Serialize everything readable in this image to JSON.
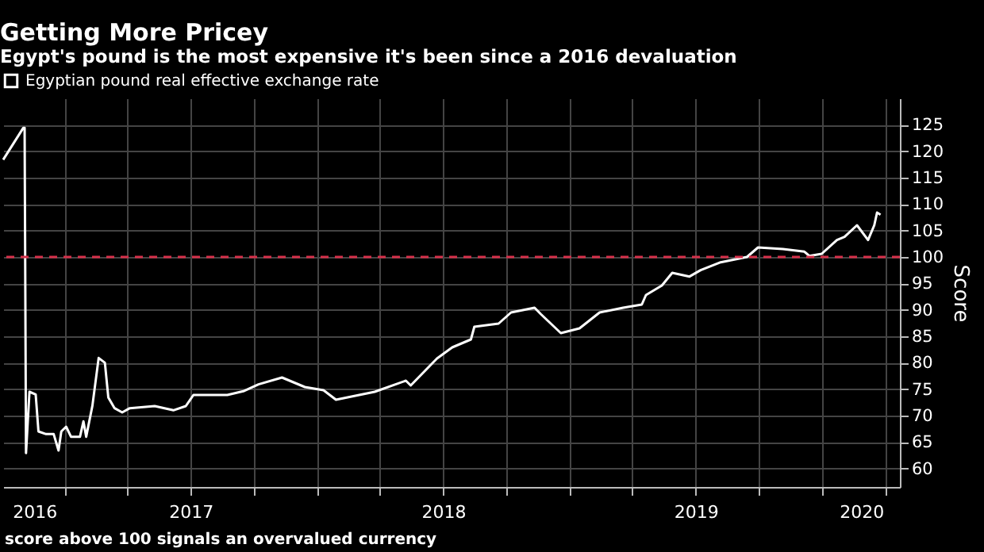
{
  "chart_data": {
    "type": "line",
    "title": "Getting More Pricey",
    "subtitle": "Egypt's pound is the most expensive it's been since a 2016 devaluation",
    "ylabel": "Score",
    "annotations": [
      "score above 100 signals an overvalued currency"
    ],
    "x": [
      "2016-10-04",
      "2016-11-02",
      "2016-11-04",
      "2016-11-06",
      "2016-11-11",
      "2016-11-20",
      "2016-11-24",
      "2016-12-05",
      "2016-12-16",
      "2016-12-23",
      "2016-12-27",
      "2017-01-03",
      "2017-01-10",
      "2017-01-23",
      "2017-01-28",
      "2017-02-01",
      "2017-02-10",
      "2017-02-19",
      "2017-02-28",
      "2017-03-05",
      "2017-03-14",
      "2017-03-25",
      "2017-04-05",
      "2017-05-11",
      "2017-06-07",
      "2017-06-25",
      "2017-07-06",
      "2017-08-24",
      "2017-09-16",
      "2017-10-08",
      "2017-11-11",
      "2017-12-14",
      "2018-01-10",
      "2018-01-28",
      "2018-03-25",
      "2018-05-09",
      "2018-05-16",
      "2018-06-23",
      "2018-07-15",
      "2018-08-11",
      "2018-08-16",
      "2018-09-20",
      "2018-10-08",
      "2018-11-11",
      "2018-11-20",
      "2018-12-19",
      "2019-01-15",
      "2019-02-13",
      "2019-03-19",
      "2019-04-15",
      "2019-04-21",
      "2019-05-14",
      "2019-05-29",
      "2019-06-23",
      "2019-07-09",
      "2019-08-07",
      "2019-09-14",
      "2019-09-30",
      "2019-11-05",
      "2019-12-06",
      "2019-12-13",
      "2019-12-31",
      "2020-01-22",
      "2020-02-02",
      "2020-02-20",
      "2020-03-07",
      "2020-03-16",
      "2020-03-20",
      "2020-03-25"
    ],
    "series": [
      {
        "name": "Egyptian pound real effective exchange rate",
        "color": "#ffffff",
        "values": [
          118.4,
          124.4,
          124.4,
          62.9,
          74.5,
          74,
          67,
          66.5,
          66.5,
          63.4,
          67,
          67.9,
          66,
          66,
          68.9,
          66,
          71.9,
          80.9,
          80,
          73.4,
          71.4,
          70.6,
          71.4,
          71.8,
          71,
          71.8,
          73.9,
          73.9,
          74.6,
          75.9,
          77.2,
          75.4,
          74.8,
          73,
          74.5,
          76.6,
          75.7,
          80.8,
          82.9,
          84.4,
          86.8,
          87.4,
          89.5,
          90.4,
          89.2,
          85.6,
          86.5,
          89.5,
          90.4,
          91,
          92.8,
          94.6,
          97,
          96.3,
          97.5,
          99,
          100,
          101.8,
          101.5,
          101,
          100.2,
          100.6,
          103.2,
          103.8,
          106,
          103.2,
          106,
          108.4,
          108
        ]
      }
    ],
    "xlim": [
      "2016-10-04",
      "2020-04-22"
    ],
    "xticks": [
      {
        "value": "2016-11-18",
        "label": "2016"
      },
      {
        "value": "2017-01-01",
        "label": null
      },
      {
        "value": "2017-04-01",
        "label": null
      },
      {
        "value": "2017-07-01",
        "label": null
      },
      {
        "value": "2017-07-02",
        "label": "2017"
      },
      {
        "value": "2017-10-01",
        "label": null
      },
      {
        "value": "2018-01-01",
        "label": null
      },
      {
        "value": "2018-04-01",
        "label": null
      },
      {
        "value": "2018-07-01",
        "label": null
      },
      {
        "value": "2018-07-02",
        "label": "2018"
      },
      {
        "value": "2018-10-01",
        "label": null
      },
      {
        "value": "2019-01-01",
        "label": null
      },
      {
        "value": "2019-04-01",
        "label": null
      },
      {
        "value": "2019-07-01",
        "label": null
      },
      {
        "value": "2019-07-02",
        "label": "2019"
      },
      {
        "value": "2019-10-01",
        "label": null
      },
      {
        "value": "2020-01-01",
        "label": null
      },
      {
        "value": "2020-02-26",
        "label": "2020"
      },
      {
        "value": "2020-04-01",
        "label": null
      }
    ],
    "ylim": [
      56.5,
      130
    ],
    "yticks": [
      60,
      65,
      70,
      75,
      80,
      85,
      90,
      95,
      100,
      105,
      110,
      115,
      120,
      125
    ],
    "grid": true,
    "legend": "top left",
    "ref_lines": [
      {
        "axis": "y",
        "value": 100,
        "color": "#d6304a",
        "line_style": "dashed"
      }
    ]
  }
}
